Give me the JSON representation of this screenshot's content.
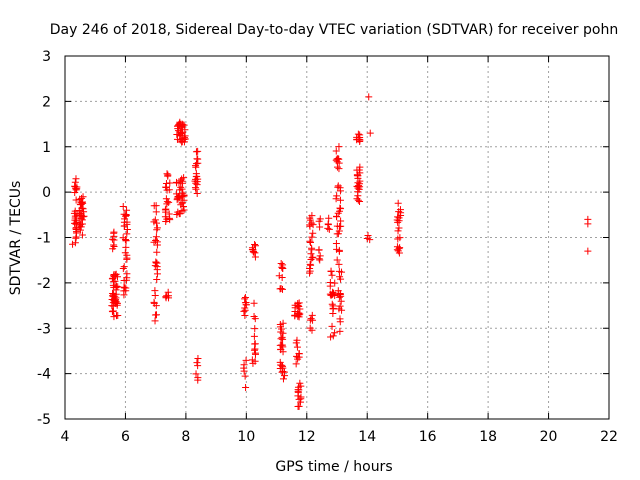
{
  "chart_data": {
    "type": "scatter",
    "title": "Day 246 of 2018, Sidereal Day-to-day VTEC variation (SDTVAR) for receiver pohn",
    "xlabel": "GPS time / hours",
    "ylabel": "SDTVAR / TECUs",
    "xlim": [
      4,
      22
    ],
    "ylim": [
      -5,
      3
    ],
    "grid": true,
    "marker": "plus",
    "color": "#ff0000",
    "x_ticks": [
      4,
      6,
      8,
      10,
      12,
      14,
      16,
      18,
      20,
      22
    ],
    "x_tick_labels": [
      "4",
      "6",
      "8",
      "10",
      "12",
      "14",
      "16",
      "18",
      "20",
      "22"
    ],
    "y_ticks": [
      3,
      2,
      1,
      0,
      -1,
      -2,
      -3,
      -4,
      -5
    ],
    "y_tick_labels": [
      "3",
      "2",
      "1",
      "0",
      "-1",
      "-2",
      "-3",
      "-4",
      "-5"
    ],
    "clusters": [
      {
        "x": 4.35,
        "xr": 0.05,
        "y0": -1.15,
        "y1": 0.3,
        "n": 30
      },
      {
        "x": 4.55,
        "xr": 0.08,
        "y0": -0.95,
        "y1": -0.1,
        "n": 30
      },
      {
        "x": 5.6,
        "xr": 0.06,
        "y0": -1.25,
        "y1": -0.85,
        "n": 8
      },
      {
        "x": 5.65,
        "xr": 0.1,
        "y0": -2.75,
        "y1": -1.8,
        "n": 45
      },
      {
        "x": 6.0,
        "xr": 0.08,
        "y0": -2.35,
        "y1": -0.3,
        "n": 35
      },
      {
        "x": 7.0,
        "xr": 0.06,
        "y0": -2.85,
        "y1": -0.25,
        "n": 30
      },
      {
        "x": 7.4,
        "xr": 0.08,
        "y0": -2.35,
        "y1": -2.1,
        "n": 6
      },
      {
        "x": 7.4,
        "xr": 0.08,
        "y0": -0.7,
        "y1": 0.45,
        "n": 22
      },
      {
        "x": 7.8,
        "xr": 0.15,
        "y0": -0.5,
        "y1": 0.35,
        "n": 35
      },
      {
        "x": 7.85,
        "xr": 0.15,
        "y0": 1.1,
        "y1": 1.55,
        "n": 35
      },
      {
        "x": 8.35,
        "xr": 0.05,
        "y0": -0.05,
        "y1": 0.9,
        "n": 20
      },
      {
        "x": 8.35,
        "xr": 0.05,
        "y0": -4.15,
        "y1": -3.65,
        "n": 6
      },
      {
        "x": 9.95,
        "xr": 0.05,
        "y0": -2.8,
        "y1": -2.3,
        "n": 10
      },
      {
        "x": 9.95,
        "xr": 0.05,
        "y0": -4.35,
        "y1": -3.65,
        "n": 6
      },
      {
        "x": 10.25,
        "xr": 0.06,
        "y0": -1.45,
        "y1": -1.1,
        "n": 10
      },
      {
        "x": 10.25,
        "xr": 0.06,
        "y0": -3.9,
        "y1": -2.4,
        "n": 14
      },
      {
        "x": 11.15,
        "xr": 0.06,
        "y0": -2.15,
        "y1": -1.5,
        "n": 10
      },
      {
        "x": 11.2,
        "xr": 0.08,
        "y0": -4.2,
        "y1": -2.8,
        "n": 28
      },
      {
        "x": 11.7,
        "xr": 0.1,
        "y0": -2.75,
        "y1": -2.4,
        "n": 18
      },
      {
        "x": 11.7,
        "xr": 0.06,
        "y0": -3.8,
        "y1": -3.2,
        "n": 10
      },
      {
        "x": 11.75,
        "xr": 0.06,
        "y0": -4.75,
        "y1": -4.15,
        "n": 14
      },
      {
        "x": 12.15,
        "xr": 0.06,
        "y0": -3.05,
        "y1": -2.7,
        "n": 6
      },
      {
        "x": 12.15,
        "xr": 0.06,
        "y0": -1.85,
        "y1": -0.4,
        "n": 22
      },
      {
        "x": 12.4,
        "xr": 0.05,
        "y0": -1.55,
        "y1": -0.55,
        "n": 8
      },
      {
        "x": 12.7,
        "xr": 0.06,
        "y0": -0.95,
        "y1": -0.55,
        "n": 5
      },
      {
        "x": 12.85,
        "xr": 0.08,
        "y0": -3.25,
        "y1": -1.7,
        "n": 22
      },
      {
        "x": 13.1,
        "xr": 0.06,
        "y0": -3.2,
        "y1": -1.5,
        "n": 18
      },
      {
        "x": 13.05,
        "xr": 0.08,
        "y0": -1.5,
        "y1": 1.1,
        "n": 35
      },
      {
        "x": 13.7,
        "xr": 0.06,
        "y0": -0.25,
        "y1": 0.6,
        "n": 22
      },
      {
        "x": 13.7,
        "xr": 0.06,
        "y0": 1.1,
        "y1": 1.3,
        "n": 10
      },
      {
        "x": 14.05,
        "xr": 0.05,
        "y0": -1.1,
        "y1": -0.95,
        "n": 3
      },
      {
        "x": 15.05,
        "xr": 0.06,
        "y0": -1.35,
        "y1": -0.15,
        "n": 20
      }
    ],
    "extra_points": [
      [
        14.05,
        2.1
      ],
      [
        14.1,
        1.3
      ],
      [
        21.3,
        -0.6
      ],
      [
        21.3,
        -0.7
      ],
      [
        21.3,
        -1.3
      ],
      [
        4.25,
        -1.15
      ],
      [
        5.55,
        -2.5
      ]
    ]
  }
}
